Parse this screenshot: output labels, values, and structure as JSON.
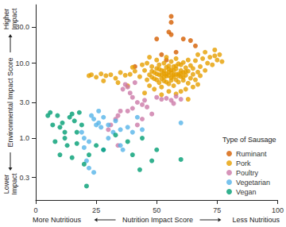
{
  "chart_data": {
    "type": "scatter",
    "xlabel": "Nutrition Impact Score",
    "ylabel": "Environmental Impact Score",
    "annotations": [
      {
        "text": "More Nutritious",
        "axis": "x",
        "end": "low"
      },
      {
        "text": "Less Nutritious",
        "axis": "x",
        "end": "high"
      },
      {
        "text": "Lower Impact",
        "axis": "y",
        "end": "low"
      },
      {
        "text": "Higher Impact",
        "axis": "y",
        "end": "high"
      }
    ],
    "legend_title": "Type of Sausage",
    "legend": "lower right",
    "log": "y",
    "grid": false,
    "xlim": [
      0,
      100
    ],
    "xticks": [
      0,
      25,
      50,
      75,
      100
    ],
    "ylim": [
      0.15,
      60
    ],
    "yticks": [
      0.3,
      {
        "value": 1,
        "label": "1.0"
      },
      {
        "value": 3,
        "label": "3.0"
      },
      {
        "value": 10,
        "label": "10.0"
      },
      {
        "value": 30,
        "label": "30.0"
      }
    ],
    "series": [
      {
        "name": "Ruminant",
        "color": "#D55E00",
        "values": [
          [
            56,
            42
          ],
          [
            56,
            35
          ],
          [
            55,
            26
          ],
          [
            56,
            24
          ],
          [
            50,
            21
          ],
          [
            41,
            9
          ],
          [
            61,
            21
          ],
          [
            64,
            20
          ],
          [
            58,
            14
          ],
          [
            52,
            13
          ],
          [
            54,
            11
          ],
          [
            66,
            17
          ]
        ]
      },
      {
        "name": "Pork",
        "color": "#E69F00",
        "values": [
          [
            23,
            7
          ],
          [
            25,
            6.5
          ],
          [
            27,
            7.2
          ],
          [
            29,
            6.8
          ],
          [
            31,
            7
          ],
          [
            33,
            6.3
          ],
          [
            35,
            7.5
          ],
          [
            37,
            6.9
          ],
          [
            39,
            7.1
          ],
          [
            41,
            7.8
          ],
          [
            43,
            6.6
          ],
          [
            28,
            5.8
          ],
          [
            34,
            5.5
          ],
          [
            22,
            6.8
          ],
          [
            45,
            8
          ],
          [
            46,
            6
          ],
          [
            46,
            10
          ],
          [
            47,
            7
          ],
          [
            47,
            5
          ],
          [
            48,
            9
          ],
          [
            48,
            6.5
          ],
          [
            49,
            7.5
          ],
          [
            49,
            4.5
          ],
          [
            50,
            8.5
          ],
          [
            50,
            6
          ],
          [
            50,
            11
          ],
          [
            51,
            7
          ],
          [
            51,
            5.5
          ],
          [
            51,
            9.5
          ],
          [
            52,
            8
          ],
          [
            52,
            6.2
          ],
          [
            52,
            4.8
          ],
          [
            53,
            7.3
          ],
          [
            53,
            10
          ],
          [
            53,
            5.8
          ],
          [
            54,
            8.8
          ],
          [
            54,
            6.7
          ],
          [
            54,
            12
          ],
          [
            55,
            7.6
          ],
          [
            55,
            5.3
          ],
          [
            55,
            9.2
          ],
          [
            56,
            6.4
          ],
          [
            56,
            8.1
          ],
          [
            56,
            10.5
          ],
          [
            57,
            7
          ],
          [
            57,
            5
          ],
          [
            57,
            9
          ],
          [
            58,
            6
          ],
          [
            58,
            8.4
          ],
          [
            58,
            11.5
          ],
          [
            59,
            7.2
          ],
          [
            59,
            5.6
          ],
          [
            59,
            9.8
          ],
          [
            60,
            6.6
          ],
          [
            60,
            8
          ],
          [
            60,
            4.2
          ],
          [
            61,
            7.5
          ],
          [
            61,
            10.2
          ],
          [
            61,
            5.9
          ],
          [
            62,
            6.9
          ],
          [
            62,
            8.7
          ],
          [
            63,
            7.8
          ],
          [
            63,
            5.4
          ],
          [
            63,
            11
          ],
          [
            64,
            6.3
          ],
          [
            64,
            9.3
          ],
          [
            65,
            7.1
          ],
          [
            65,
            8.5
          ],
          [
            66,
            6
          ],
          [
            66,
            10.8
          ],
          [
            67,
            7.6
          ],
          [
            67,
            13
          ],
          [
            68,
            9
          ],
          [
            68,
            6.8
          ],
          [
            69,
            11.5
          ],
          [
            70,
            8
          ],
          [
            70,
            14
          ],
          [
            71,
            10
          ],
          [
            72,
            12
          ],
          [
            73,
            9.5
          ],
          [
            74,
            15
          ],
          [
            75,
            11
          ],
          [
            76,
            13
          ],
          [
            77,
            10.5
          ],
          [
            74,
            12.5
          ],
          [
            52,
            7
          ],
          [
            53,
            7.9
          ],
          [
            54,
            7.2
          ],
          [
            55,
            6.8
          ],
          [
            56,
            7.4
          ],
          [
            57,
            6.6
          ],
          [
            58,
            7.1
          ],
          [
            59,
            6.8
          ],
          [
            60,
            7.3
          ],
          [
            61,
            6.5
          ],
          [
            55,
            8.3
          ],
          [
            53,
            6.5
          ],
          [
            50,
            7.2
          ],
          [
            48,
            7.8
          ],
          [
            57,
            8
          ],
          [
            62,
            7.7
          ],
          [
            49,
            6.2
          ],
          [
            51,
            8.3
          ],
          [
            58,
            9.2
          ],
          [
            54,
            5.6
          ],
          [
            56,
            5.9
          ],
          [
            60,
            9.5
          ],
          [
            45,
            4
          ],
          [
            52,
            3.8
          ],
          [
            55,
            4.2
          ],
          [
            58,
            3.9
          ],
          [
            62,
            4.5
          ],
          [
            38,
            5
          ],
          [
            40,
            8.8
          ],
          [
            44,
            9.5
          ],
          [
            63,
            3.3
          ],
          [
            47,
            12
          ],
          [
            65,
            4.8
          ],
          [
            67,
            5.2
          ]
        ]
      },
      {
        "name": "Poultry",
        "color": "#CC79A7",
        "values": [
          [
            30,
            1.3
          ],
          [
            31,
            1.5
          ],
          [
            33,
            1.8
          ],
          [
            34,
            2
          ],
          [
            35,
            2.3
          ],
          [
            36,
            4.5
          ],
          [
            37,
            5.2
          ],
          [
            38,
            4.8
          ],
          [
            39,
            4
          ],
          [
            41,
            5.5
          ],
          [
            40,
            3.5
          ],
          [
            42,
            3
          ],
          [
            44,
            2.8
          ],
          [
            45,
            3.2
          ],
          [
            50,
            3.5
          ],
          [
            52,
            3.3
          ],
          [
            54,
            3.4
          ],
          [
            56,
            3.2
          ],
          [
            58,
            3.6
          ],
          [
            60,
            3.3
          ],
          [
            42,
            1.5
          ],
          [
            44,
            1.8
          ],
          [
            46,
            2.6
          ],
          [
            40,
            2.5
          ],
          [
            38,
            2.3
          ],
          [
            48,
            2.1
          ],
          [
            34,
            0.8
          ],
          [
            57,
            2.9
          ]
        ]
      },
      {
        "name": "Vegetarian",
        "color": "#56B4E9",
        "values": [
          [
            19,
            1.2
          ],
          [
            20,
            1
          ],
          [
            21,
            0.5
          ],
          [
            22,
            0.9
          ],
          [
            23,
            2
          ],
          [
            24,
            1.8
          ],
          [
            25,
            1.5
          ],
          [
            26,
            1.6
          ],
          [
            27,
            1.4
          ],
          [
            28,
            1.9
          ],
          [
            30,
            1.5
          ],
          [
            32,
            1.2
          ],
          [
            33,
            1.7
          ],
          [
            35,
            0.8
          ],
          [
            36,
            0.7
          ],
          [
            38,
            1.4
          ],
          [
            40,
            1.2
          ],
          [
            22,
            0.4
          ],
          [
            24,
            0.35
          ],
          [
            28,
            0.7
          ],
          [
            30,
            1
          ],
          [
            20,
            0.75
          ],
          [
            42,
            1.9
          ],
          [
            44,
            1.3
          ],
          [
            60,
            1.6
          ],
          [
            26,
            2.3
          ],
          [
            35,
            1.3
          ]
        ]
      },
      {
        "name": "Vegan",
        "color": "#009E73",
        "values": [
          [
            5,
            2
          ],
          [
            7,
            1.5
          ],
          [
            9,
            2
          ],
          [
            10,
            1.4
          ],
          [
            11,
            1.6
          ],
          [
            12,
            1
          ],
          [
            13,
            0.8
          ],
          [
            14,
            1.9
          ],
          [
            15,
            2.1
          ],
          [
            16,
            1.7
          ],
          [
            17,
            1.2
          ],
          [
            18,
            2.2
          ],
          [
            19,
            1.5
          ],
          [
            8,
            0.9
          ],
          [
            10,
            0.6
          ],
          [
            15,
            0.55
          ],
          [
            20,
            0.45
          ],
          [
            21,
            0.23
          ],
          [
            22,
            0.6
          ],
          [
            25,
            0.8
          ],
          [
            28,
            0.7
          ],
          [
            33,
            1.1
          ],
          [
            38,
            0.9
          ],
          [
            40,
            0.6
          ],
          [
            44,
            1
          ],
          [
            48,
            0.5
          ],
          [
            50,
            0.7
          ],
          [
            60,
            0.52
          ],
          [
            43,
            0.38
          ],
          [
            12,
            1.2
          ],
          [
            6,
            2.2
          ],
          [
            17,
            0.85
          ]
        ]
      }
    ]
  }
}
